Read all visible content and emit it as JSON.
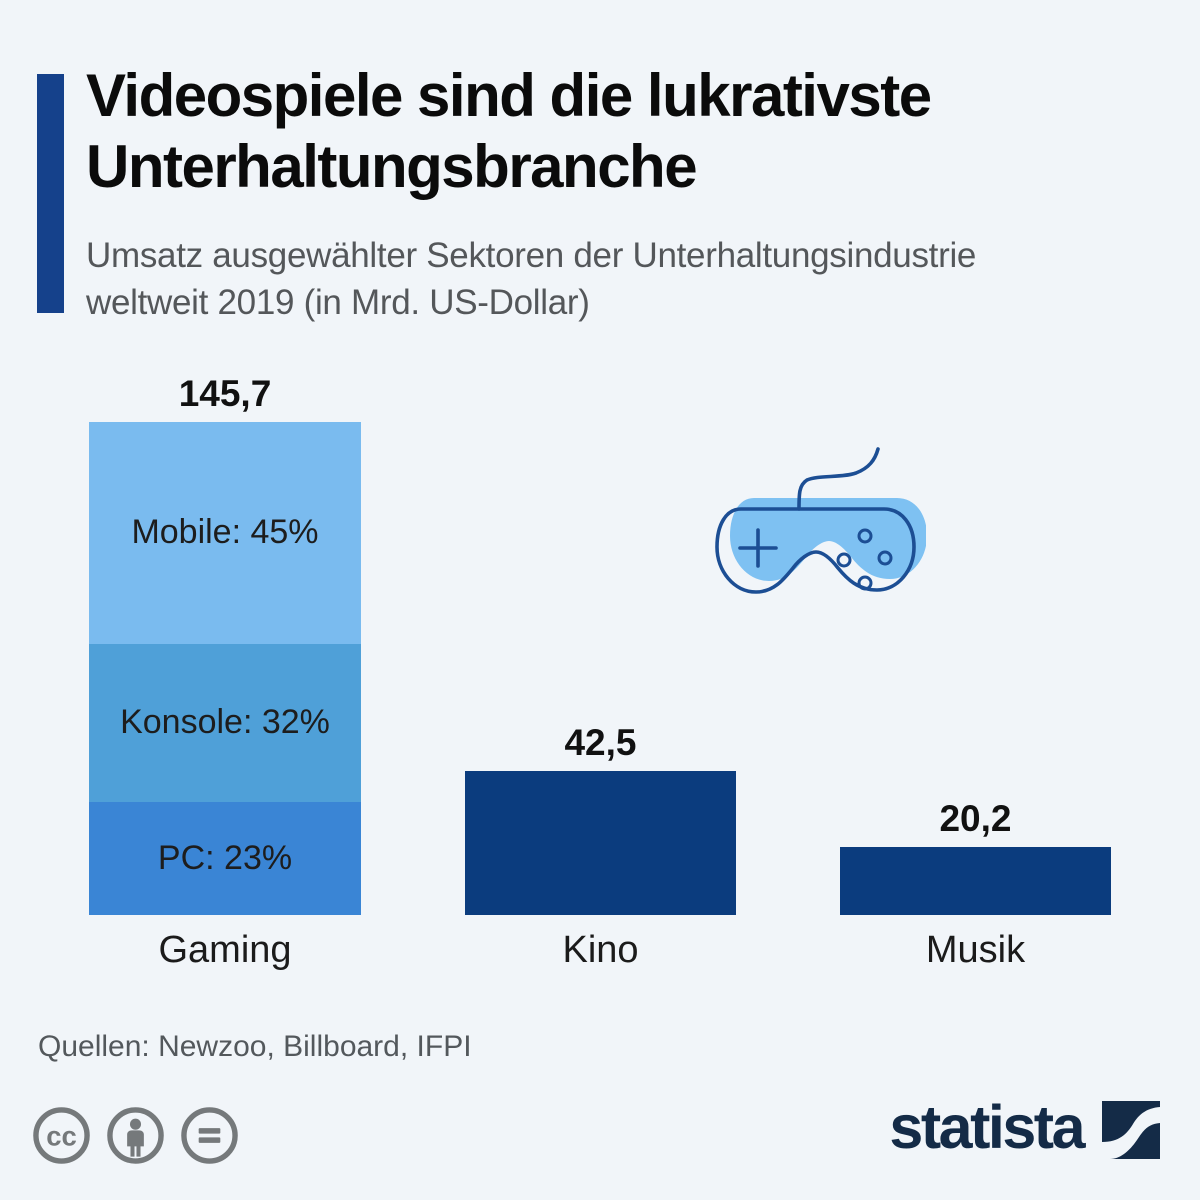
{
  "header": {
    "accent_color": "#15418b",
    "title_line1": "Videospiele sind die lukrativste",
    "title_line2": "Unterhaltungsbranche",
    "subtitle_line1": "Umsatz ausgewählter Sektoren der Unterhaltungsindustrie",
    "subtitle_line2": "weltweit 2019 (in Mrd. US-Dollar)"
  },
  "chart_data": {
    "type": "bar",
    "title": "Videospiele sind die lukrativste Unterhaltungsbranche",
    "subtitle": "Umsatz ausgewählter Sektoren der Unterhaltungsindustrie weltweit 2019 (in Mrd. US-Dollar)",
    "unit": "Mrd. US-Dollar",
    "ylim": [
      0,
      150
    ],
    "grid": false,
    "legend": false,
    "categories": [
      "Gaming",
      "Kino",
      "Musik"
    ],
    "values": [
      145.7,
      42.5,
      20.2
    ],
    "bars": [
      {
        "category": "Gaming",
        "value": 145.7,
        "value_label": "145,7",
        "segments": [
          {
            "name": "Mobile",
            "percent": 45,
            "label": "Mobile: 45%",
            "color": "#7abbef"
          },
          {
            "name": "Konsole",
            "percent": 32,
            "label": "Konsole: 32%",
            "color": "#4fa0d8"
          },
          {
            "name": "PC",
            "percent": 23,
            "label": "PC: 23%",
            "color": "#3a85d5"
          }
        ]
      },
      {
        "category": "Kino",
        "value": 42.5,
        "value_label": "42,5",
        "color": "#0b3c7e"
      },
      {
        "category": "Musik",
        "value": 20.2,
        "value_label": "20,2",
        "color": "#0b3c7e"
      }
    ]
  },
  "icons": {
    "controller": {
      "name": "game-controller-icon",
      "fill": "#7ec1f2",
      "stroke": "#1c4e94"
    },
    "license": [
      "cc",
      "by",
      "nd"
    ],
    "cc_text": "cc",
    "license_gray": "#75797b"
  },
  "footer": {
    "sources": "Quellen: Newzoo, Billboard, IFPI",
    "brand": "statista",
    "brand_color": "#142b47"
  }
}
